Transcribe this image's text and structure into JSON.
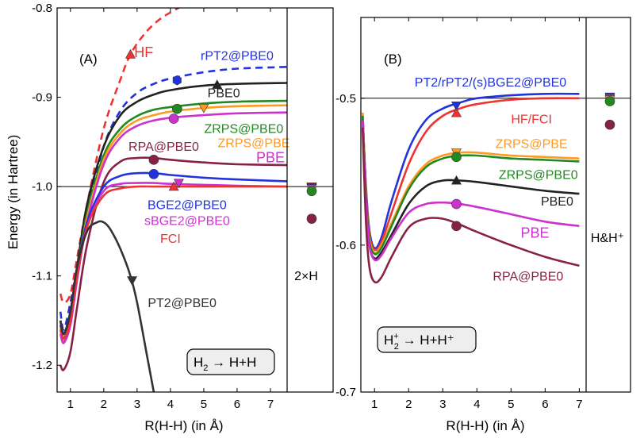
{
  "chart_data": [
    {
      "type": "line",
      "panel_label": "(A)",
      "xlabel": "R(H-H) (in Å)",
      "ylabel": "Energy (in Hartree)",
      "xlim": [
        0.6,
        7.5
      ],
      "ylim": [
        -1.23,
        -0.8
      ],
      "xticks": [
        1,
        2,
        3,
        4,
        5,
        6,
        7
      ],
      "xtick_labels": [
        "1",
        "2",
        "3",
        "4",
        "5",
        "6",
        "7"
      ],
      "yticks": [
        -0.8,
        -0.9,
        -1.0,
        -1.1,
        -1.2
      ],
      "ytick_labels": [
        "-0.8",
        "-0.9",
        "-1.0",
        "-1.1",
        "-1.2"
      ],
      "reference_line_y": -1.0,
      "side_panel_label": "2×H",
      "reaction_box": {
        "lhs": "H",
        "lhs_sub": "2",
        "rhs": "H+H"
      },
      "series": [
        {
          "name": "HF",
          "color": "#ee3333",
          "dash": true,
          "x": [
            0.7,
            0.8,
            1.0,
            1.2,
            1.5,
            2.0,
            2.5,
            2.8,
            3.2,
            3.6,
            4.0,
            4.5
          ],
          "y": [
            -1.12,
            -1.13,
            -1.12,
            -1.08,
            -1.02,
            -0.935,
            -0.88,
            -0.852,
            -0.83,
            -0.815,
            -0.805,
            -0.795
          ],
          "marker": {
            "shape": "triangle-up",
            "x": 2.8,
            "y": -0.852
          }
        },
        {
          "name": "rPT2@PBE0",
          "color": "#2233dd",
          "dash": true,
          "x": [
            0.7,
            0.8,
            1.0,
            1.2,
            1.5,
            2.0,
            2.5,
            3.0,
            3.5,
            4.0,
            5.0,
            6.0,
            7.5
          ],
          "y": [
            -1.14,
            -1.16,
            -1.13,
            -1.09,
            -1.03,
            -0.955,
            -0.915,
            -0.895,
            -0.885,
            -0.879,
            -0.872,
            -0.868,
            -0.866
          ],
          "marker": {
            "shape": "hexagon",
            "x": 4.2,
            "y": -0.881
          }
        },
        {
          "name": "PBE0",
          "color": "#222222",
          "dash": false,
          "x": [
            0.7,
            0.8,
            1.0,
            1.2,
            1.5,
            2.0,
            2.5,
            3.0,
            3.5,
            4.0,
            5.0,
            6.0,
            7.5
          ],
          "y": [
            -1.15,
            -1.165,
            -1.14,
            -1.09,
            -1.02,
            -0.955,
            -0.92,
            -0.905,
            -0.897,
            -0.892,
            -0.887,
            -0.885,
            -0.884
          ],
          "marker": {
            "shape": "triangle-up",
            "x": 5.4,
            "y": -0.886
          }
        },
        {
          "name": "ZRPS@PBE0",
          "color": "#228822",
          "dash": false,
          "x": [
            0.7,
            0.8,
            1.0,
            1.2,
            1.5,
            2.0,
            2.5,
            3.0,
            3.5,
            4.0,
            5.0,
            6.0,
            7.5
          ],
          "y": [
            -1.155,
            -1.17,
            -1.145,
            -1.095,
            -1.03,
            -0.965,
            -0.935,
            -0.921,
            -0.914,
            -0.911,
            -0.907,
            -0.905,
            -0.904
          ],
          "marker": {
            "shape": "circle",
            "x": 4.2,
            "y": -0.913
          }
        },
        {
          "name": "ZRPS@PBE",
          "color": "#ff9922",
          "dash": false,
          "x": [
            0.7,
            0.8,
            1.0,
            1.2,
            1.5,
            2.0,
            2.5,
            3.0,
            3.5,
            4.0,
            5.0,
            6.0,
            7.5
          ],
          "y": [
            -1.16,
            -1.172,
            -1.15,
            -1.1,
            -1.035,
            -0.97,
            -0.94,
            -0.926,
            -0.92,
            -0.916,
            -0.912,
            -0.91,
            -0.909
          ],
          "marker": {
            "shape": "triangle-down",
            "x": 5.0,
            "y": -0.912
          }
        },
        {
          "name": "PBE",
          "color": "#cc33cc",
          "dash": false,
          "x": [
            0.7,
            0.8,
            1.0,
            1.2,
            1.5,
            2.0,
            2.5,
            3.0,
            3.5,
            4.0,
            5.0,
            6.0,
            7.5
          ],
          "y": [
            -1.165,
            -1.175,
            -1.155,
            -1.105,
            -1.04,
            -0.975,
            -0.945,
            -0.932,
            -0.926,
            -0.923,
            -0.92,
            -0.918,
            -0.917
          ],
          "marker": {
            "shape": "circle",
            "x": 4.1,
            "y": -0.924
          }
        },
        {
          "name": "RPA@PBE0",
          "color": "#882244",
          "dash": false,
          "x": [
            0.7,
            0.8,
            1.0,
            1.2,
            1.5,
            2.0,
            2.5,
            3.0,
            3.5,
            4.0,
            5.0,
            6.0,
            7.5
          ],
          "y": [
            -1.2,
            -1.205,
            -1.185,
            -1.135,
            -1.065,
            -0.995,
            -0.972,
            -0.968,
            -0.968,
            -0.97,
            -0.973,
            -0.975,
            -0.976
          ],
          "marker": {
            "shape": "circle",
            "x": 3.5,
            "y": -0.97
          }
        },
        {
          "name": "BGE2@PBE0",
          "color": "#2233dd",
          "dash": false,
          "x": [
            0.7,
            0.8,
            1.0,
            1.2,
            1.5,
            2.0,
            2.5,
            3.0,
            3.5,
            4.0,
            5.0,
            6.0,
            7.5
          ],
          "y": [
            -1.15,
            -1.165,
            -1.14,
            -1.095,
            -1.04,
            -1.0,
            -0.988,
            -0.985,
            -0.985,
            -0.987,
            -0.99,
            -0.992,
            -0.994
          ],
          "marker": {
            "shape": "circle",
            "x": 3.5,
            "y": -0.986
          }
        },
        {
          "name": "sBGE2@PBE0",
          "color": "#cc33cc",
          "dash": false,
          "x": [
            0.7,
            0.8,
            1.0,
            1.2,
            1.5,
            2.0,
            2.5,
            3.0,
            3.5,
            4.0,
            5.0,
            6.0,
            7.5
          ],
          "y": [
            -1.16,
            -1.175,
            -1.15,
            -1.1,
            -1.045,
            -1.005,
            -0.997,
            -0.996,
            -0.996,
            -0.997,
            -0.998,
            -0.999,
            -1.0
          ],
          "marker": {
            "shape": "triangle-down",
            "x": 4.25,
            "y": -0.996
          }
        },
        {
          "name": "FCI",
          "color": "#ee3333",
          "dash": false,
          "x": [
            0.7,
            0.8,
            1.0,
            1.2,
            1.5,
            2.0,
            2.5,
            3.0,
            3.5,
            4.0,
            5.0,
            6.0,
            7.5
          ],
          "y": [
            -1.155,
            -1.17,
            -1.15,
            -1.1,
            -1.045,
            -1.01,
            -1.002,
            -1.0,
            -1.0,
            -1.0,
            -1.0,
            -1.0,
            -1.0
          ],
          "marker": {
            "shape": "triangle-up",
            "x": 4.1,
            "y": -1.0
          }
        },
        {
          "name": "PT2@PBE0",
          "color": "#333333",
          "dash": false,
          "x": [
            0.7,
            0.8,
            1.0,
            1.2,
            1.5,
            1.8,
            2.0,
            2.2,
            2.5,
            2.8,
            3.0,
            3.3,
            3.5
          ],
          "y": [
            -1.15,
            -1.165,
            -1.14,
            -1.09,
            -1.05,
            -1.04,
            -1.04,
            -1.048,
            -1.07,
            -1.1,
            -1.13,
            -1.19,
            -1.23
          ],
          "marker": {
            "shape": "triangle-down",
            "x": 2.85,
            "y": -1.105
          }
        }
      ],
      "series_labels": [
        {
          "series": "HF",
          "text": "HF",
          "x": 3.2,
          "y": -0.855
        },
        {
          "series": "rPT2@PBE0",
          "text": "rPT2@PBE0",
          "x": 6.0,
          "y": -0.858
        },
        {
          "series": "PBE0",
          "text": "PBE0",
          "x": 5.6,
          "y": -0.9
        },
        {
          "series": "ZRPS@PBE0",
          "text": "ZRPS@PBE0",
          "x": 6.2,
          "y": -0.94
        },
        {
          "series": "ZRPS@PBE",
          "text": "ZRPS@PBE",
          "x": 6.5,
          "y": -0.956
        },
        {
          "series": "PBE",
          "text": "PBE",
          "x": 7.0,
          "y": -0.973
        },
        {
          "series": "RPA@PBE0",
          "text": "RPA@PBE0",
          "x": 3.8,
          "y": -0.96
        },
        {
          "series": "BGE2@PBE0",
          "text": "BGE2@PBE0",
          "x": 4.5,
          "y": -1.025
        },
        {
          "series": "sBGE2@PBE0",
          "text": "sBGE2@PBE0",
          "x": 4.5,
          "y": -1.043
        },
        {
          "series": "FCI",
          "text": "FCI",
          "x": 4.0,
          "y": -1.063
        },
        {
          "series": "PT2@PBE0",
          "text": "PT2@PBE0",
          "x": 4.35,
          "y": -1.135
        }
      ],
      "side_markers": [
        {
          "shape": "triangle-down",
          "color": "#ee3333",
          "y": -1.0
        },
        {
          "shape": "triangle-down",
          "color": "#2233dd",
          "y": -1.001
        },
        {
          "shape": "triangle-down",
          "color": "#cc33cc",
          "y": -1.002
        },
        {
          "shape": "triangle-down",
          "color": "#ff9922",
          "y": -1.004
        },
        {
          "shape": "circle",
          "color": "#228822",
          "y": -1.005
        },
        {
          "shape": "circle",
          "color": "#882244",
          "y": -1.036
        }
      ]
    },
    {
      "type": "line",
      "panel_label": "(B)",
      "xlabel": "R(H-H) (in Å)",
      "ylabel": "",
      "xlim": [
        0.6,
        7.2
      ],
      "ylim": [
        -0.7,
        -0.445
      ],
      "xticks": [
        1,
        2,
        3,
        4,
        5,
        6,
        7
      ],
      "xtick_labels": [
        "1",
        "2",
        "3",
        "4",
        "5",
        "6",
        "7"
      ],
      "yticks": [
        -0.5,
        -0.6,
        -0.7
      ],
      "ytick_labels": [
        "-0.5",
        "-0.6",
        "-0.7"
      ],
      "reference_line_y": -0.5,
      "side_panel_label": "H&H⁺",
      "reaction_box": {
        "lhs": "H",
        "lhs_sub": "2",
        "lhs_sup": "+",
        "rhs": "H+H⁺"
      },
      "series": [
        {
          "name": "PT2/rPT2/(s)BGE2@PBE0",
          "color": "#2233dd",
          "x": [
            0.65,
            0.75,
            0.85,
            1.0,
            1.2,
            1.5,
            2.0,
            2.5,
            3.0,
            3.5,
            4.0,
            5.0,
            6.0,
            7.0
          ],
          "y": [
            -0.51,
            -0.56,
            -0.59,
            -0.602,
            -0.595,
            -0.57,
            -0.535,
            -0.515,
            -0.507,
            -0.503,
            -0.5,
            -0.498,
            -0.497,
            -0.497
          ],
          "marker": {
            "shape": "triangle-down",
            "x": 3.4,
            "y": -0.505
          }
        },
        {
          "name": "HF/FCI",
          "color": "#ee3333",
          "x": [
            0.65,
            0.75,
            0.85,
            1.0,
            1.2,
            1.5,
            2.0,
            2.5,
            3.0,
            3.5,
            4.0,
            5.0,
            6.0,
            7.0
          ],
          "y": [
            -0.51,
            -0.562,
            -0.593,
            -0.603,
            -0.598,
            -0.578,
            -0.545,
            -0.523,
            -0.512,
            -0.507,
            -0.504,
            -0.501,
            -0.5,
            -0.5
          ],
          "marker": {
            "shape": "triangle-up",
            "x": 3.4,
            "y": -0.51
          }
        },
        {
          "name": "ZRPS@PBE",
          "color": "#ff9922",
          "x": [
            0.65,
            0.75,
            0.85,
            1.0,
            1.2,
            1.5,
            2.0,
            2.5,
            3.0,
            3.5,
            4.0,
            5.0,
            6.0,
            7.0
          ],
          "y": [
            -0.51,
            -0.563,
            -0.595,
            -0.605,
            -0.6,
            -0.585,
            -0.56,
            -0.545,
            -0.539,
            -0.537,
            -0.537,
            -0.539,
            -0.54,
            -0.541
          ],
          "marker": {
            "shape": "triangle-down",
            "x": 3.4,
            "y": -0.537
          }
        },
        {
          "name": "ZRPS@PBE0",
          "color": "#228822",
          "x": [
            0.65,
            0.75,
            0.85,
            1.0,
            1.2,
            1.5,
            2.0,
            2.5,
            3.0,
            3.5,
            4.0,
            5.0,
            6.0,
            7.0
          ],
          "y": [
            -0.512,
            -0.565,
            -0.597,
            -0.606,
            -0.602,
            -0.587,
            -0.562,
            -0.547,
            -0.541,
            -0.539,
            -0.539,
            -0.541,
            -0.542,
            -0.543
          ],
          "marker": {
            "shape": "circle",
            "x": 3.4,
            "y": -0.54
          }
        },
        {
          "name": "PBE0",
          "color": "#222222",
          "x": [
            0.65,
            0.75,
            0.85,
            1.0,
            1.2,
            1.5,
            2.0,
            2.5,
            3.0,
            3.5,
            4.0,
            5.0,
            6.0,
            7.0
          ],
          "y": [
            -0.515,
            -0.568,
            -0.6,
            -0.609,
            -0.605,
            -0.593,
            -0.572,
            -0.56,
            -0.556,
            -0.556,
            -0.557,
            -0.56,
            -0.563,
            -0.565
          ],
          "marker": {
            "shape": "triangle-up",
            "x": 3.4,
            "y": -0.556
          }
        },
        {
          "name": "PBE",
          "color": "#cc33cc",
          "x": [
            0.65,
            0.75,
            0.85,
            1.0,
            1.2,
            1.5,
            2.0,
            2.5,
            3.0,
            3.5,
            4.0,
            5.0,
            6.0,
            7.0
          ],
          "y": [
            -0.515,
            -0.57,
            -0.6,
            -0.61,
            -0.607,
            -0.595,
            -0.578,
            -0.572,
            -0.571,
            -0.572,
            -0.574,
            -0.579,
            -0.584,
            -0.587
          ],
          "marker": {
            "shape": "circle",
            "x": 3.4,
            "y": -0.572
          }
        },
        {
          "name": "RPA@PBE0",
          "color": "#882244",
          "x": [
            0.65,
            0.75,
            0.85,
            1.0,
            1.2,
            1.5,
            2.0,
            2.5,
            3.0,
            3.5,
            4.0,
            5.0,
            6.0,
            7.0
          ],
          "y": [
            -0.52,
            -0.585,
            -0.615,
            -0.625,
            -0.622,
            -0.608,
            -0.588,
            -0.582,
            -0.582,
            -0.586,
            -0.591,
            -0.6,
            -0.608,
            -0.614
          ],
          "marker": {
            "shape": "circle",
            "x": 3.4,
            "y": -0.587
          }
        }
      ],
      "series_labels": [
        {
          "series": "PT2/rPT2/(s)BGE2@PBE0",
          "text": "PT2/rPT2/(s)BGE2@PBE0",
          "x": 4.4,
          "y": -0.492
        },
        {
          "series": "HF/FCI",
          "text": "HF/FCI",
          "x": 5.6,
          "y": -0.517
        },
        {
          "series": "ZRPS@PBE",
          "text": "ZRPS@PBE",
          "x": 5.6,
          "y": -0.534
        },
        {
          "series": "ZRPS@PBE0",
          "text": "ZRPS@PBE0",
          "x": 5.8,
          "y": -0.555
        },
        {
          "series": "PBE0",
          "text": "PBE0",
          "x": 6.35,
          "y": -0.573
        },
        {
          "series": "PBE",
          "text": "PBE",
          "x": 5.7,
          "y": -0.595
        },
        {
          "series": "RPA@PBE0",
          "text": "RPA@PBE0",
          "x": 5.5,
          "y": -0.624
        }
      ],
      "side_markers": [
        {
          "shape": "triangle-down",
          "color": "#2233dd",
          "y": -0.499
        },
        {
          "shape": "triangle-down",
          "color": "#ee3333",
          "y": -0.5
        },
        {
          "shape": "triangle-down",
          "color": "#ff9922",
          "y": -0.501
        },
        {
          "shape": "circle",
          "color": "#228822",
          "y": -0.502
        },
        {
          "shape": "circle",
          "color": "#882244",
          "y": -0.518
        }
      ]
    }
  ]
}
